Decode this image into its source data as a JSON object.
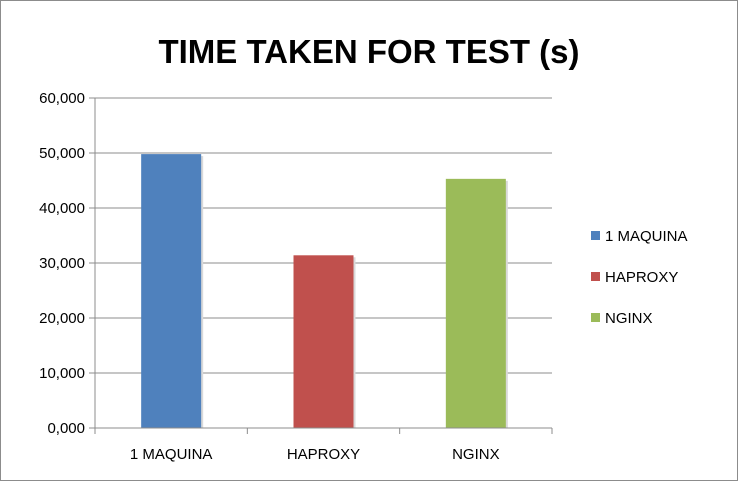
{
  "chart_data": {
    "type": "bar",
    "title": "TIME TAKEN FOR TEST (s)",
    "xlabel": "",
    "ylabel": "",
    "categories": [
      "1 MAQUINA",
      "HAPROXY",
      "NGINX"
    ],
    "values": [
      49.8,
      31.4,
      45.3
    ],
    "colors": [
      "#4f81bd",
      "#c0504d",
      "#9bbb59"
    ],
    "ylim": [
      0,
      60
    ],
    "yticks": [
      0,
      10,
      20,
      30,
      40,
      50,
      60
    ],
    "ytick_labels": [
      "0,000",
      "10,000",
      "20,000",
      "30,000",
      "40,000",
      "50,000",
      "60,000"
    ],
    "grid": true,
    "legend": {
      "placement": "right",
      "entries": [
        "1 MAQUINA",
        "HAPROXY",
        "NGINX"
      ]
    }
  }
}
